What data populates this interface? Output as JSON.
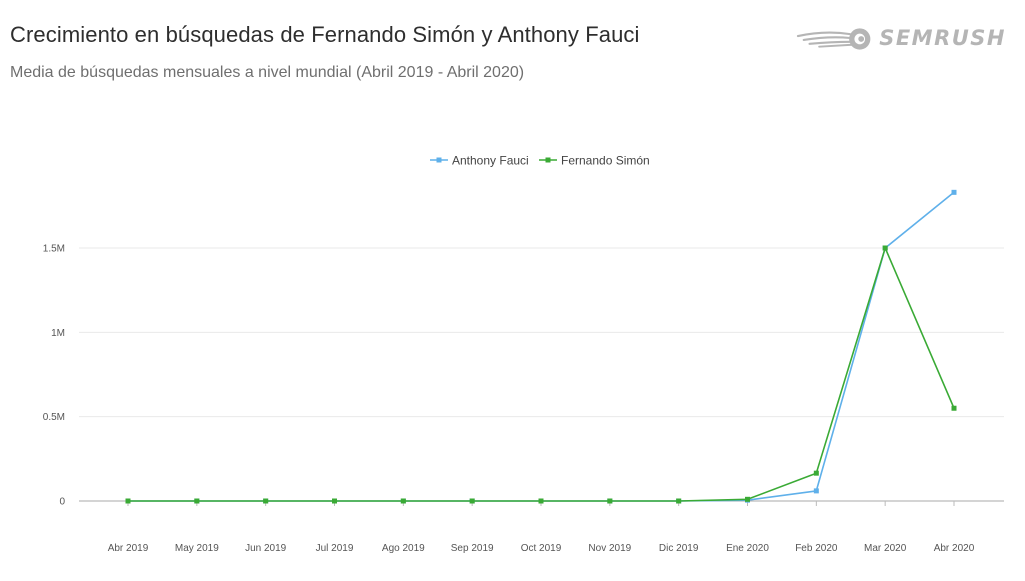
{
  "header": {
    "title": "Crecimiento en búsquedas de Fernando Simón y Anthony Fauci",
    "subtitle": "Media de búsquedas mensuales a nivel mundial (Abril 2019 - Abril 2020)"
  },
  "brand": {
    "name": "SEMRUSH",
    "logo_icon": "semrush-fireball-icon",
    "color": "#b5b5b5"
  },
  "chart_data": {
    "type": "line",
    "title": "",
    "xlabel": "",
    "ylabel": "",
    "categories": [
      "Abr 2019",
      "May 2019",
      "Jun 2019",
      "Jul 2019",
      "Ago 2019",
      "Sep 2019",
      "Oct 2019",
      "Nov 2019",
      "Dic 2019",
      "Ene 2020",
      "Feb 2020",
      "Mar 2020",
      "Abr 2020"
    ],
    "ylim": [
      0,
      1900000
    ],
    "yticks": [
      0,
      500000,
      1000000,
      1500000
    ],
    "ytick_labels": [
      "0",
      "0.5M",
      "1M",
      "1.5M"
    ],
    "grid": true,
    "legend_position": "top-center",
    "series": [
      {
        "name": "Anthony Fauci",
        "color": "#5fb0ea",
        "values": [
          0,
          0,
          0,
          0,
          0,
          0,
          0,
          0,
          0,
          5000,
          60000,
          1500000,
          1830000
        ]
      },
      {
        "name": "Fernando Simón",
        "color": "#3aaa35",
        "values": [
          0,
          0,
          0,
          0,
          0,
          0,
          0,
          0,
          0,
          10000,
          165000,
          1500000,
          550000
        ]
      }
    ]
  }
}
